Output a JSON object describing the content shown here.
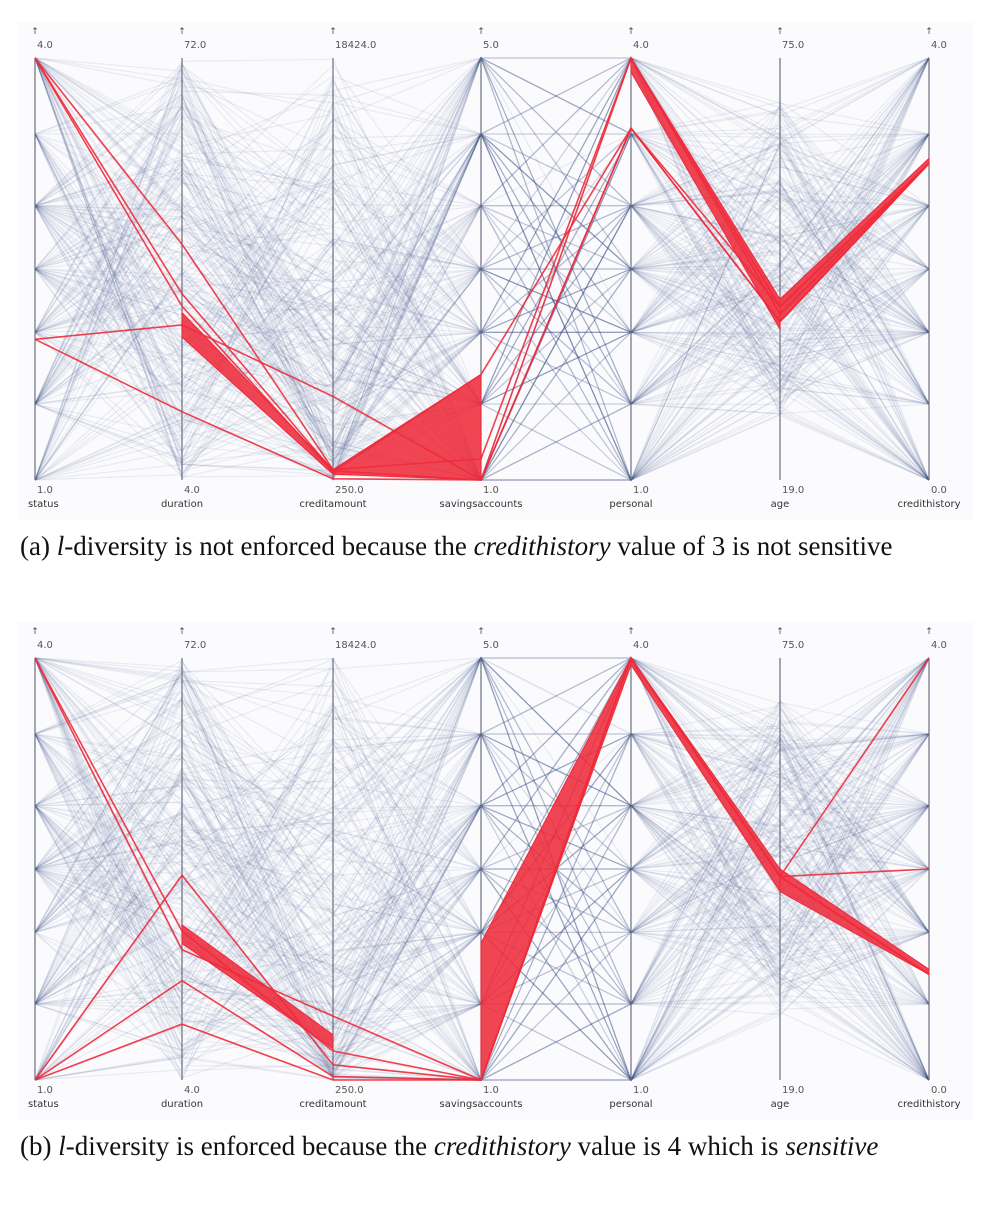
{
  "figure": {
    "panels": [
      {
        "id": "a",
        "caption": {
          "label": "(a)",
          "symbol": "l",
          "pre": "-diversity is not enforced because the ",
          "em": "credithistory",
          "post": " value of 3 is not sensitive",
          "post_em": ""
        }
      },
      {
        "id": "b",
        "caption": {
          "label": "(b)",
          "symbol": "l",
          "pre": "-diversity is enforced because the ",
          "em": "credithistory",
          "post": " value is 4 which is ",
          "post_em": "sensitive"
        }
      }
    ]
  },
  "chart_data": [
    {
      "type": "parallel-coordinates",
      "axes": [
        {
          "name": "status",
          "min": 1.0,
          "max": 4.0,
          "min_label": "1.0",
          "max_label": "4.0"
        },
        {
          "name": "duration",
          "min": 4.0,
          "max": 72.0,
          "min_label": "4.0",
          "max_label": "72.0"
        },
        {
          "name": "creditamount",
          "min": 250.0,
          "max": 18424.0,
          "min_label": "250.0",
          "max_label": "18424.0"
        },
        {
          "name": "savingsaccounts",
          "min": 1.0,
          "max": 5.0,
          "min_label": "1.0",
          "max_label": "5.0"
        },
        {
          "name": "personal",
          "min": 1.0,
          "max": 4.0,
          "min_label": "1.0",
          "max_label": "4.0"
        },
        {
          "name": "age",
          "min": 19.0,
          "max": 75.0,
          "min_label": "19.0",
          "max_label": "75.0"
        },
        {
          "name": "credithistory",
          "min": 0.0,
          "max": 4.0,
          "min_label": "0.0",
          "max_label": "4.0"
        }
      ],
      "colors": {
        "context": "#3b4a86",
        "highlight": "#ee2b3b"
      },
      "highlighted_records": [
        {
          "values": [
            4.0,
            42.0,
            700,
            1.2,
            4.0,
            41,
            3.0
          ]
        },
        {
          "values": [
            4.0,
            34.0,
            640,
            1.0,
            4.0,
            42,
            3.0
          ]
        },
        {
          "values": [
            2.0,
            15.0,
            300,
            1.0,
            3.5,
            40,
            3.0
          ]
        },
        {
          "values": [
            2.0,
            29.0,
            3850,
            1.0,
            3.5,
            40,
            3.0
          ]
        },
        {
          "values": [
            4.0,
            32.0,
            600,
            2.0,
            3.5,
            42,
            3.0
          ]
        }
      ],
      "highlighted_bands": [
        {
          "from_axis": "duration",
          "to_axis": "creditamount",
          "from": [
            27.0,
            31.0
          ],
          "to": [
            500,
            700
          ]
        },
        {
          "from_axis": "creditamount",
          "to_axis": "savingsaccounts",
          "from": [
            500,
            700
          ],
          "to": [
            1.0,
            2.0
          ]
        },
        {
          "from_axis": "personal",
          "to_axis": "age",
          "from": [
            3.9,
            4.0
          ],
          "to": [
            39,
            43
          ]
        },
        {
          "from_axis": "age",
          "to_axis": "credithistory",
          "from": [
            40,
            43
          ],
          "to": [
            3.0,
            3.05
          ]
        }
      ]
    },
    {
      "type": "parallel-coordinates",
      "axes": [
        {
          "name": "status",
          "min": 1.0,
          "max": 4.0,
          "min_label": "1.0",
          "max_label": "4.0"
        },
        {
          "name": "duration",
          "min": 4.0,
          "max": 72.0,
          "min_label": "4.0",
          "max_label": "72.0"
        },
        {
          "name": "creditamount",
          "min": 250.0,
          "max": 18424.0,
          "min_label": "250.0",
          "max_label": "18424.0"
        },
        {
          "name": "savingsaccounts",
          "min": 1.0,
          "max": 5.0,
          "min_label": "1.0",
          "max_label": "5.0"
        },
        {
          "name": "personal",
          "min": 1.0,
          "max": 4.0,
          "min_label": "1.0",
          "max_label": "4.0"
        },
        {
          "name": "age",
          "min": 19.0,
          "max": 75.0,
          "min_label": "19.0",
          "max_label": "75.0"
        },
        {
          "name": "credithistory",
          "min": 0.0,
          "max": 4.0,
          "min_label": "0.0",
          "max_label": "4.0"
        }
      ],
      "colors": {
        "context": "#3b4a86",
        "highlight": "#ee2b3b"
      },
      "highlighted_records": [
        {
          "values": [
            4.0,
            25.0,
            3000,
            1.0,
            4.0,
            46,
            4.0
          ]
        },
        {
          "values": [
            1.0,
            37.0,
            900,
            1.0,
            4.0,
            46,
            2.0
          ]
        },
        {
          "values": [
            1.0,
            20.0,
            400,
            1.0,
            4.0,
            46,
            1.0
          ]
        },
        {
          "values": [
            1.0,
            13.0,
            250,
            1.0,
            4.0,
            46,
            1.0
          ]
        },
        {
          "values": [
            4.0,
            28.0,
            1500,
            1.0,
            4.0,
            46,
            1.0
          ]
        }
      ],
      "highlighted_bands": [
        {
          "from_axis": "duration",
          "to_axis": "creditamount",
          "from": [
            26.0,
            29.0
          ],
          "to": [
            1600,
            2200
          ]
        },
        {
          "from_axis": "savingsaccounts",
          "to_axis": "personal",
          "from": [
            1.0,
            2.3
          ],
          "to": [
            3.95,
            4.0
          ]
        },
        {
          "from_axis": "personal",
          "to_axis": "age",
          "from": [
            3.95,
            4.0
          ],
          "to": [
            44,
            47
          ]
        },
        {
          "from_axis": "age",
          "to_axis": "credithistory",
          "from": [
            44,
            47
          ],
          "to": [
            1.0,
            1.05
          ]
        }
      ]
    }
  ]
}
